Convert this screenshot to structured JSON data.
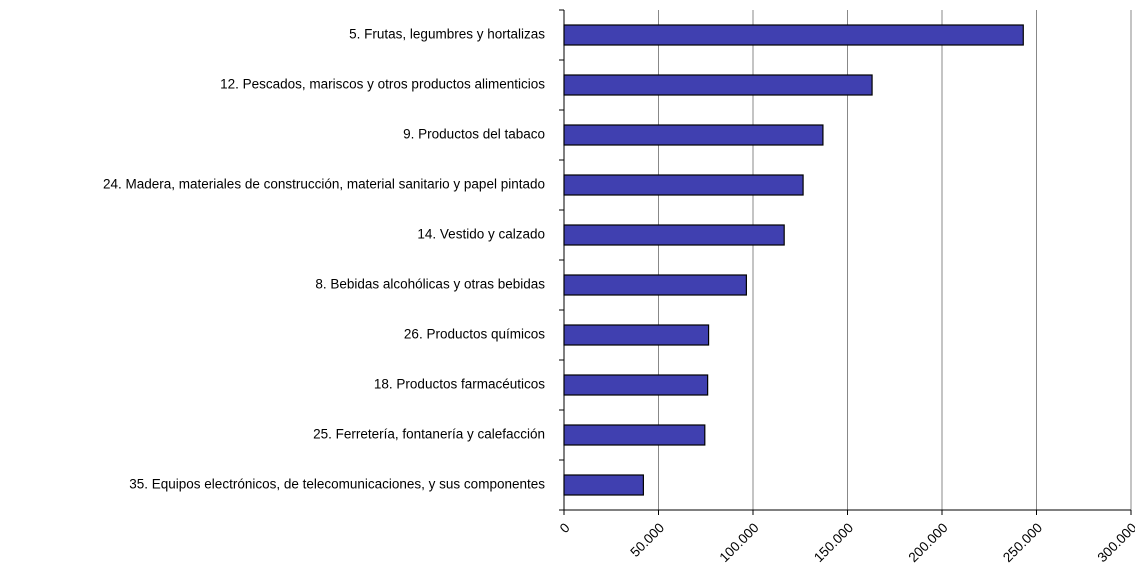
{
  "chart_data": {
    "type": "bar",
    "orientation": "horizontal",
    "categories": [
      "5. Frutas, legumbres y hortalizas",
      "12. Pescados, mariscos y otros productos alimenticios",
      "9. Productos del tabaco",
      "24. Madera, materiales de construcción, material sanitario y papel pintado",
      "14. Vestido y calzado",
      "8. Bebidas alcohólicas y otras bebidas",
      "26. Productos químicos",
      "18. Productos farmacéuticos",
      "25. Ferretería, fontanería y calefacción",
      "35. Equipos electrónicos, de telecomunicaciones, y sus componentes"
    ],
    "values": [
      243000,
      163000,
      137000,
      126500,
      116500,
      96500,
      76500,
      76000,
      74500,
      42000
    ],
    "color": "#4040b0",
    "xlim": [
      0,
      300000
    ],
    "xticks": [
      0,
      {
        "value": 50000,
        "label": "50.000"
      },
      {
        "value": 100000,
        "label": "100.000"
      },
      {
        "value": 150000,
        "label": "150.000"
      },
      {
        "value": 200000,
        "label": "200.000"
      },
      {
        "value": 250000,
        "label": "250.000"
      },
      {
        "value": 300000,
        "label": "300.000"
      }
    ],
    "grid": true
  }
}
